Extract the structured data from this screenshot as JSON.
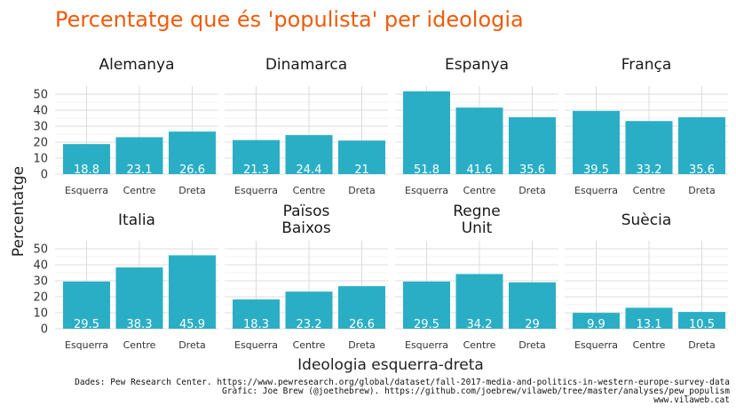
{
  "chart_data": {
    "type": "bar",
    "title": "Percentatge que és 'populista' per ideologia",
    "xlabel": "Ideologia esquerra-dreta",
    "ylabel": "Percentatge",
    "ylim": [
      0,
      55
    ],
    "yticks": [
      "0",
      "10",
      "20",
      "30",
      "40",
      "50"
    ],
    "categories": [
      "Esquerra",
      "Centre",
      "Dreta"
    ],
    "bar_color": "#2aaec5",
    "grid": true,
    "facets": [
      {
        "name": "Alemanya",
        "values": [
          18.8,
          23.1,
          26.6
        ],
        "labels": [
          "18.8",
          "23.1",
          "26.6"
        ]
      },
      {
        "name": "Dinamarca",
        "values": [
          21.3,
          24.4,
          21
        ],
        "labels": [
          "21.3",
          "24.4",
          "21"
        ]
      },
      {
        "name": "Espanya",
        "values": [
          51.8,
          41.6,
          35.6
        ],
        "labels": [
          "51.8",
          "41.6",
          "35.6"
        ]
      },
      {
        "name": "França",
        "values": [
          39.5,
          33.2,
          35.6
        ],
        "labels": [
          "39.5",
          "33.2",
          "35.6"
        ]
      },
      {
        "name": "Italia",
        "values": [
          29.5,
          38.3,
          45.9
        ],
        "labels": [
          "29.5",
          "38.3",
          "45.9"
        ]
      },
      {
        "name": "Països\nBaixos",
        "values": [
          18.3,
          23.2,
          26.6
        ],
        "labels": [
          "18.3",
          "23.2",
          "26.6"
        ]
      },
      {
        "name": "Regne\nUnit",
        "values": [
          29.5,
          34.2,
          29
        ],
        "labels": [
          "29.5",
          "34.2",
          "29"
        ]
      },
      {
        "name": "Suècia",
        "values": [
          9.9,
          13.1,
          10.5
        ],
        "labels": [
          "9.9",
          "13.1",
          "10.5"
        ]
      }
    ],
    "caption": [
      "Dades: Pew Research Center. https://www.pewresearch.org/global/dataset/fall-2017-media-and-politics-in-western-europe-survey-data",
      "Gràfic: Joe Brew (@joethebrew). https://github.com/joebrew/vilaweb/tree/master/analyses/pew_populism",
      "www.vilaweb.cat"
    ]
  }
}
